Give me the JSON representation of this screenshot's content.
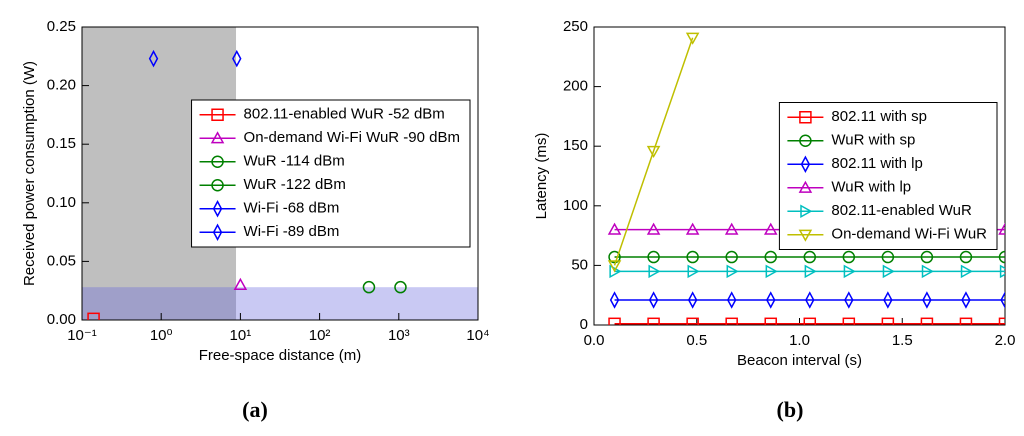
{
  "chart_data": [
    {
      "type": "scatter",
      "caption": "(a)",
      "xlabel": "Free-space distance (m)",
      "ylabel": "Received power consumption (W)",
      "xscale": "log",
      "xlim": [
        0.1,
        10000
      ],
      "xticks": [
        {
          "value": 0.1,
          "label": "10⁻¹"
        },
        {
          "value": 1,
          "label": "10⁰"
        },
        {
          "value": 10,
          "label": "10¹"
        },
        {
          "value": 100,
          "label": "10²"
        },
        {
          "value": 1000,
          "label": "10³"
        },
        {
          "value": 10000,
          "label": "10⁴"
        }
      ],
      "ylim": [
        0,
        0.25
      ],
      "yticks": [
        {
          "value": 0,
          "label": "0.00"
        },
        0.05,
        {
          "value": 0.1,
          "label": "0.10"
        },
        0.15,
        {
          "value": 0.2,
          "label": "0.20"
        },
        0.25
      ],
      "legend": "center right",
      "shaded_regions": [
        {
          "x_range": [
            0.1,
            8.8
          ],
          "y_range": [
            0,
            0.25
          ],
          "color": "#808080",
          "opacity": 0.5
        },
        {
          "x_range": [
            0.1,
            10000
          ],
          "y_range": [
            0,
            0.028
          ],
          "color": "#6464dc",
          "opacity": 0.35
        }
      ],
      "series": [
        {
          "name": "802.11-enabled WuR -52 dBm",
          "color": "#ff0000",
          "marker": "s",
          "x": [
            0.14
          ],
          "values": [
            0.001
          ]
        },
        {
          "name": "On-demand Wi-Fi WuR -90 dBm",
          "color": "#bf00bf",
          "marker": "^",
          "x": [
            10
          ],
          "values": [
            0.03
          ]
        },
        {
          "name": "WuR -114 dBm",
          "color": "#008000",
          "marker": "o",
          "x": [
            420
          ],
          "values": [
            0.028
          ]
        },
        {
          "name": "WuR -122 dBm",
          "color": "#008000",
          "marker": "o",
          "x": [
            1050
          ],
          "values": [
            0.028
          ]
        },
        {
          "name": "Wi-Fi -68 dBm",
          "color": "#0000ff",
          "marker": "d",
          "x": [
            0.8
          ],
          "values": [
            0.223
          ]
        },
        {
          "name": "Wi-Fi -89 dBm",
          "color": "#0000ff",
          "marker": "d",
          "x": [
            9
          ],
          "values": [
            0.223
          ]
        }
      ]
    },
    {
      "type": "line",
      "caption": "(b)",
      "xlabel": "Beacon interval (s)",
      "ylabel": "Latency (ms)",
      "xlim": [
        0,
        2.0
      ],
      "xticks": [
        {
          "value": 0,
          "label": "0.0"
        },
        0.5,
        {
          "value": 1,
          "label": "1.0"
        },
        1.5,
        {
          "value": 2,
          "label": "2.0"
        }
      ],
      "ylim": [
        0,
        250
      ],
      "yticks": [
        0,
        50,
        100,
        150,
        200,
        250
      ],
      "legend": "center right",
      "x": [
        0.1,
        0.29,
        0.48,
        0.67,
        0.86,
        1.05,
        1.24,
        1.43,
        1.62,
        1.81,
        2.0
      ],
      "series": [
        {
          "name": "802.11 with sp",
          "color": "#ff0000",
          "marker": "s",
          "values": [
            1,
            1,
            1,
            1,
            1,
            1,
            1,
            1,
            1,
            1,
            1
          ]
        },
        {
          "name": "WuR with sp",
          "color": "#008000",
          "marker": "o",
          "values": [
            57,
            57,
            57,
            57,
            57,
            57,
            57,
            57,
            57,
            57,
            57
          ]
        },
        {
          "name": "802.11 with lp",
          "color": "#0000ff",
          "marker": "d",
          "values": [
            21,
            21,
            21,
            21,
            21,
            21,
            21,
            21,
            21,
            21,
            21
          ]
        },
        {
          "name": "WuR with lp",
          "color": "#bf00bf",
          "marker": "^",
          "values": [
            80,
            80,
            80,
            80,
            80,
            80,
            80,
            80,
            80,
            80,
            80
          ]
        },
        {
          "name": "802.11-enabled WuR",
          "color": "#00bfbf",
          "marker": ">",
          "values": [
            45,
            45,
            45,
            45,
            45,
            45,
            45,
            45,
            45,
            45,
            45
          ]
        },
        {
          "name": "On-demand Wi-Fi WuR",
          "color": "#bfbf00",
          "marker": "v",
          "values": [
            50,
            146,
            241,
            null,
            null,
            null,
            null,
            null,
            null,
            null,
            null
          ]
        }
      ]
    }
  ]
}
